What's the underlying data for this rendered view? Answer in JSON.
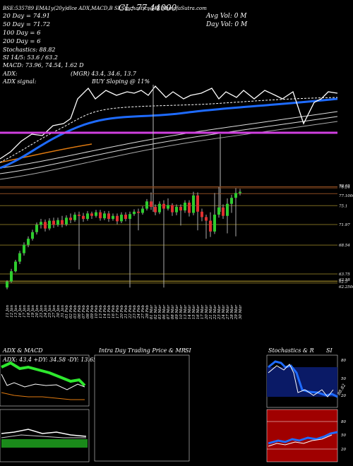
{
  "header": {
    "line1": "BSE:535789  EMA1y(20y)dlce ADX,MACD,B    SI,Stochastics,MR      MunafaSutra.com",
    "overlay": "CL: 77.44000",
    "ema20": "20  Day  =  74.91",
    "ema50": "50  Day  =  71.72",
    "ema100": "100  Day  =  6",
    "ema200": "200  Day  =  6",
    "stoch": "Stochastics:  88.82",
    "si": "SI  14/5:  53.6  /  63.2",
    "macd": "MACD:  73.96,  74.54,  1.62  D",
    "adx": "ADX:",
    "mgr": "(MGR)  43.4,  34.6,  13.7",
    "adx_signal": "ADX  signal:",
    "buy": "BUY  Sloping  @  11%",
    "avg_vol": "Avg Vol:  0    M",
    "day_vol": "Day Vol:  0    M"
  },
  "price_labels": [
    {
      "text": "78.24",
      "value": 78.24
    },
    {
      "text": "78.05",
      "value": 78.05
    },
    {
      "text": "77.10000",
      "value": 77.1
    },
    {
      "text": "75.1",
      "value": 75.1
    },
    {
      "text": "71.97",
      "value": 71.97
    },
    {
      "text": "68.54",
      "value": 68.54
    },
    {
      "text": "63.75",
      "value": 63.75
    },
    {
      "text": "62.58",
      "value": 62.58
    },
    {
      "text": "62.5",
      "value": 62.5
    },
    {
      "text": "62.25000",
      "value": 62.25
    }
  ],
  "panels": {
    "adx_title": "ADX  &  MACD",
    "adx_values": "ADX: 43.4  +DY: 34.58  -DY: 13.65",
    "intraday_title": "Intra  Day  Trading  Price   &  MR",
    "intraday_si": "SI",
    "stoch_title": "Stochastics  &  R",
    "stoch_si": "SI"
  },
  "stoch_ticks": [
    "80",
    "50",
    "20"
  ],
  "stoch_value": "88.82",
  "si_ticks": [
    "80",
    "50",
    "20"
  ],
  "chart_data": {
    "type": "candlestick",
    "dates": [
      "11 Jan",
      "12 Jan",
      "13 Jan",
      "16 Jan",
      "17 Jan",
      "18 Jan",
      "19 Jan",
      "20 Jan",
      "23 Jan",
      "24 Jan",
      "25 Jan",
      "27 Jan",
      "30 Jan",
      "31 Jan",
      "01 Feb",
      "02 Feb",
      "03 Feb",
      "06 Feb",
      "07 Feb",
      "08 Feb",
      "09 Feb",
      "10 Feb",
      "13 Feb",
      "14 Feb",
      "15 Feb",
      "16 Feb",
      "17 Feb",
      "20 Feb",
      "21 Feb",
      "22 Feb",
      "23 Feb",
      "24 Feb",
      "27 Feb",
      "28 Feb",
      "01 Mar",
      "02 Mar",
      "03 Mar",
      "06 Mar",
      "07 Mar",
      "08 Mar",
      "09 Mar",
      "10 Mar",
      "13 Mar",
      "14 Mar",
      "15 Mar",
      "16 Mar",
      "17 Mar",
      "20 Mar",
      "21 Mar",
      "22 Mar",
      "23 Mar",
      "24 Mar",
      "27 Mar",
      "28 Mar",
      "29 Mar",
      "30 Mar"
    ],
    "candles": [
      [
        61.5,
        62.5,
        61.2,
        62.7
      ],
      [
        62.5,
        64.2,
        62.3,
        64.6
      ],
      [
        64.2,
        65.8,
        64.0,
        66.1
      ],
      [
        65.8,
        67.2,
        65.4,
        67.6
      ],
      [
        67.2,
        68.6,
        66.8,
        69.0
      ],
      [
        68.6,
        69.6,
        68.2,
        70.0
      ],
      [
        69.6,
        70.7,
        69.3,
        71.1
      ],
      [
        70.7,
        71.9,
        70.3,
        72.3
      ],
      [
        71.9,
        72.4,
        71.3,
        72.9
      ],
      [
        72.4,
        71.3,
        70.8,
        72.8
      ],
      [
        71.3,
        72.6,
        71.0,
        73.0
      ],
      [
        72.6,
        71.9,
        71.4,
        73.1
      ],
      [
        71.9,
        72.7,
        71.6,
        73.1
      ],
      [
        72.7,
        72.0,
        71.5,
        73.4
      ],
      [
        72.0,
        73.1,
        71.7,
        73.5
      ],
      [
        73.1,
        72.7,
        72.2,
        73.8
      ],
      [
        72.7,
        73.6,
        72.4,
        74.0
      ],
      [
        73.6,
        73.4,
        64.5,
        74.1
      ],
      [
        73.4,
        72.9,
        72.4,
        73.9
      ],
      [
        72.9,
        73.8,
        72.6,
        74.2
      ],
      [
        73.8,
        73.4,
        72.9,
        74.1
      ],
      [
        73.4,
        74.0,
        73.1,
        74.4
      ],
      [
        74.0,
        73.0,
        72.6,
        74.4
      ],
      [
        73.0,
        73.8,
        72.7,
        74.2
      ],
      [
        73.8,
        72.9,
        72.4,
        74.2
      ],
      [
        72.9,
        73.4,
        72.6,
        73.8
      ],
      [
        73.4,
        72.5,
        72.0,
        73.8
      ],
      [
        72.5,
        73.6,
        72.2,
        74.0
      ],
      [
        73.6,
        72.9,
        72.5,
        74.0
      ],
      [
        72.9,
        73.7,
        61.5,
        74.1
      ],
      [
        73.7,
        74.1,
        73.4,
        74.5
      ],
      [
        74.1,
        73.9,
        71.0,
        74.6
      ],
      [
        73.9,
        74.6,
        73.6,
        75.0
      ],
      [
        74.6,
        75.8,
        74.3,
        76.2
      ],
      [
        75.8,
        74.9,
        74.4,
        77.3
      ],
      [
        74.9,
        74.0,
        73.5,
        75.3
      ],
      [
        74.0,
        75.4,
        73.7,
        75.8
      ],
      [
        75.4,
        74.6,
        61.5,
        76.0
      ],
      [
        74.6,
        75.2,
        74.3,
        76.3
      ],
      [
        75.2,
        74.0,
        73.4,
        75.5
      ],
      [
        74.0,
        74.9,
        73.5,
        75.3
      ],
      [
        74.9,
        74.3,
        71.8,
        75.3
      ],
      [
        74.3,
        75.6,
        73.9,
        76.0
      ],
      [
        75.6,
        73.9,
        73.3,
        76.0
      ],
      [
        73.9,
        76.8,
        73.5,
        77.4
      ],
      [
        76.8,
        74.1,
        71.0,
        77.3
      ],
      [
        74.1,
        73.2,
        72.5,
        74.6
      ],
      [
        73.2,
        72.6,
        69.6,
        73.6
      ],
      [
        72.6,
        70.8,
        69.9,
        74.0
      ],
      [
        70.8,
        73.6,
        70.4,
        77.2
      ],
      [
        73.6,
        74.8,
        73.1,
        78.2
      ],
      [
        74.8,
        73.4,
        72.9,
        75.3
      ],
      [
        73.4,
        75.4,
        70.5,
        76.3
      ],
      [
        75.4,
        76.4,
        73.9,
        76.9
      ],
      [
        76.4,
        77.2,
        70.0,
        78.0
      ],
      [
        77.2,
        77.4,
        76.8,
        77.9
      ]
    ],
    "ylim": [
      60,
      79
    ]
  }
}
